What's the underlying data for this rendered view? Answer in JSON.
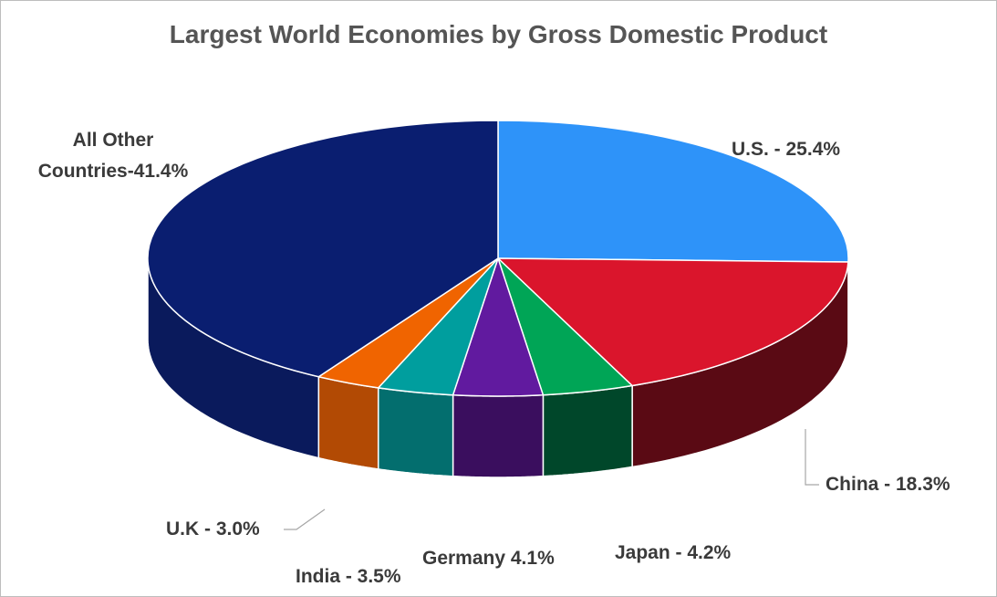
{
  "chart_data": {
    "type": "pie",
    "title": "Largest World Economies by Gross Domestic Product",
    "slices": [
      {
        "name": "U.S.",
        "value": 25.4,
        "label": "U.S. - 25.4%",
        "color": "#2e93f9",
        "side_color": "#1c5fa6"
      },
      {
        "name": "China",
        "value": 18.3,
        "label": "China - 18.3%",
        "color": "#da152c",
        "side_color": "#5a0a14"
      },
      {
        "name": "Japan",
        "value": 4.2,
        "label": "Japan - 4.2%",
        "color": "#00a556",
        "side_color": "#00472a"
      },
      {
        "name": "Germany",
        "value": 4.1,
        "label": "Germany 4.1%",
        "color": "#611a9f",
        "side_color": "#3a0e5e"
      },
      {
        "name": "India",
        "value": 3.5,
        "label": "India - 3.5%",
        "color": "#009e9e",
        "side_color": "#036e6e"
      },
      {
        "name": "U.K",
        "value": 3.0,
        "label": "U.K - 3.0%",
        "color": "#f06400",
        "side_color": "#b24a04"
      },
      {
        "name": "All Other Countries",
        "value": 41.4,
        "label_lines": [
          "All Other",
          "Countries-41.4%"
        ],
        "color": "#0a1e70",
        "side_color": "#0a1a5c"
      }
    ]
  }
}
